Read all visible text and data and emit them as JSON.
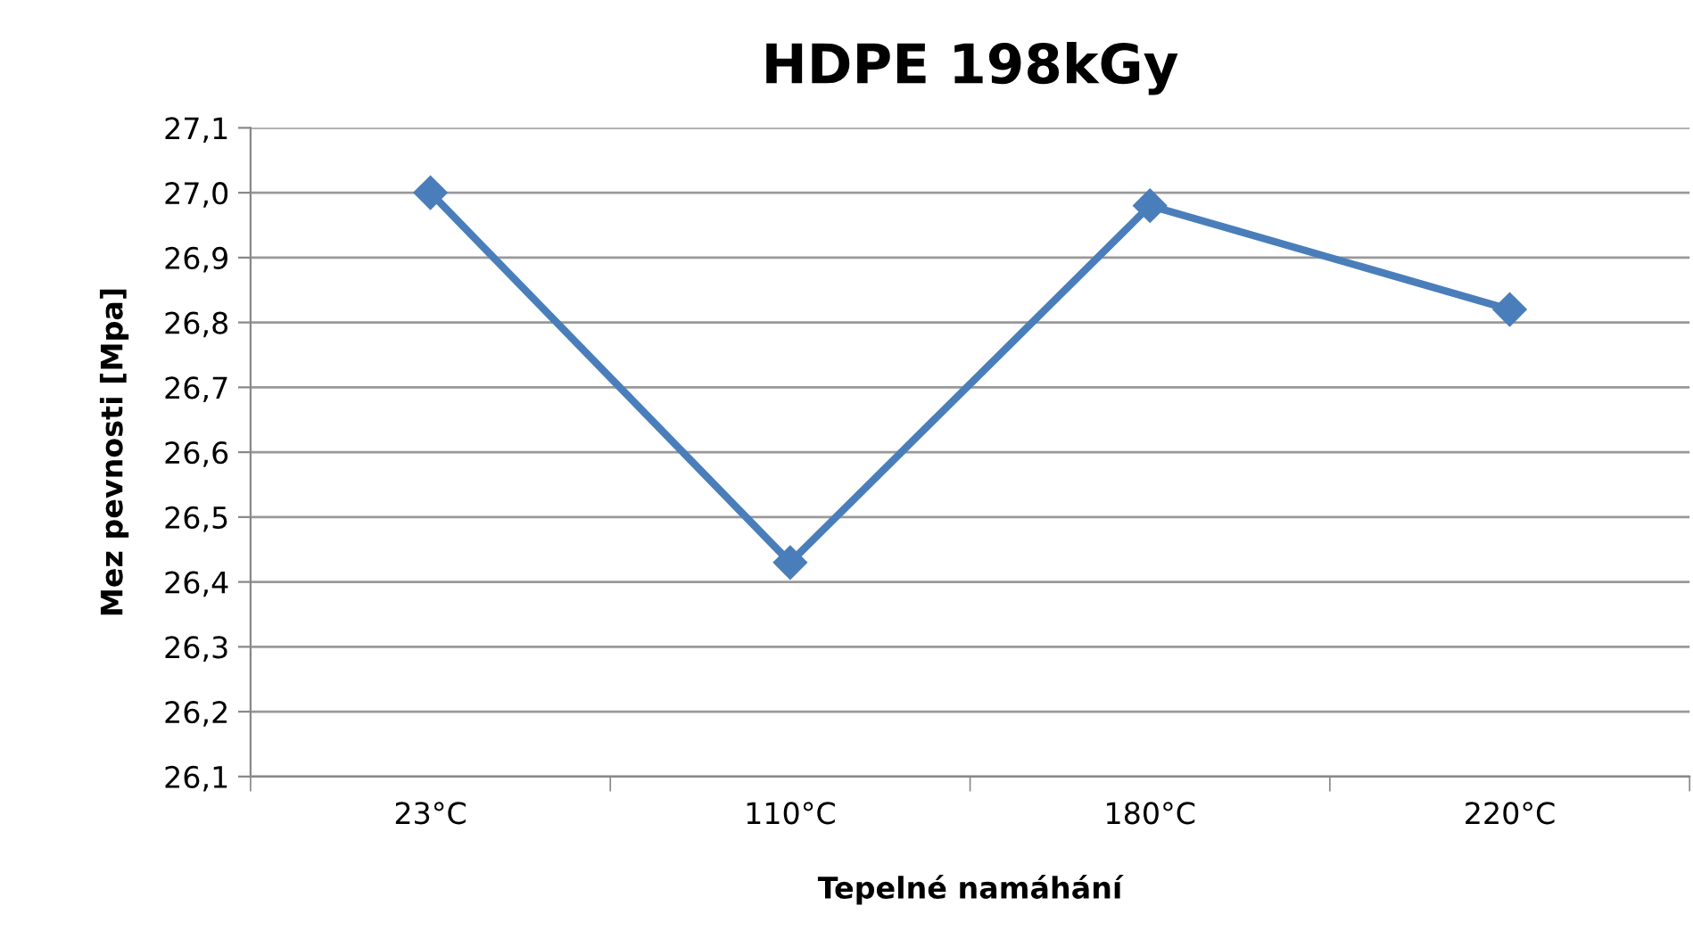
{
  "chart_data": {
    "type": "line",
    "title": "HDPE 198kGy",
    "xlabel": "Tepelné namáhání",
    "ylabel": "Mez pevnosti [Mpa]",
    "categories": [
      "23°C",
      "110°C",
      "180°C",
      "220°C"
    ],
    "series": [
      {
        "color": "#4a7ebb",
        "values": [
          27.0,
          26.43,
          26.98,
          26.82
        ]
      }
    ],
    "ylim": [
      26.1,
      27.1
    ],
    "yticks": [
      {
        "value": 26.1,
        "label": "26,1"
      },
      {
        "value": 26.2,
        "label": "26,2"
      },
      {
        "value": 26.3,
        "label": "26,3"
      },
      {
        "value": 26.4,
        "label": "26,4"
      },
      {
        "value": 26.5,
        "label": "26,5"
      },
      {
        "value": 26.6,
        "label": "26,6"
      },
      {
        "value": 26.7,
        "label": "26,7"
      },
      {
        "value": 26.8,
        "label": "26,8"
      },
      {
        "value": 26.9,
        "label": "26,9"
      },
      {
        "value": 27.0,
        "label": "27,0"
      },
      {
        "value": 27.1,
        "label": "27,1"
      }
    ],
    "grid": "y",
    "marker": "diamond",
    "line_style": "solid",
    "legend": false
  }
}
